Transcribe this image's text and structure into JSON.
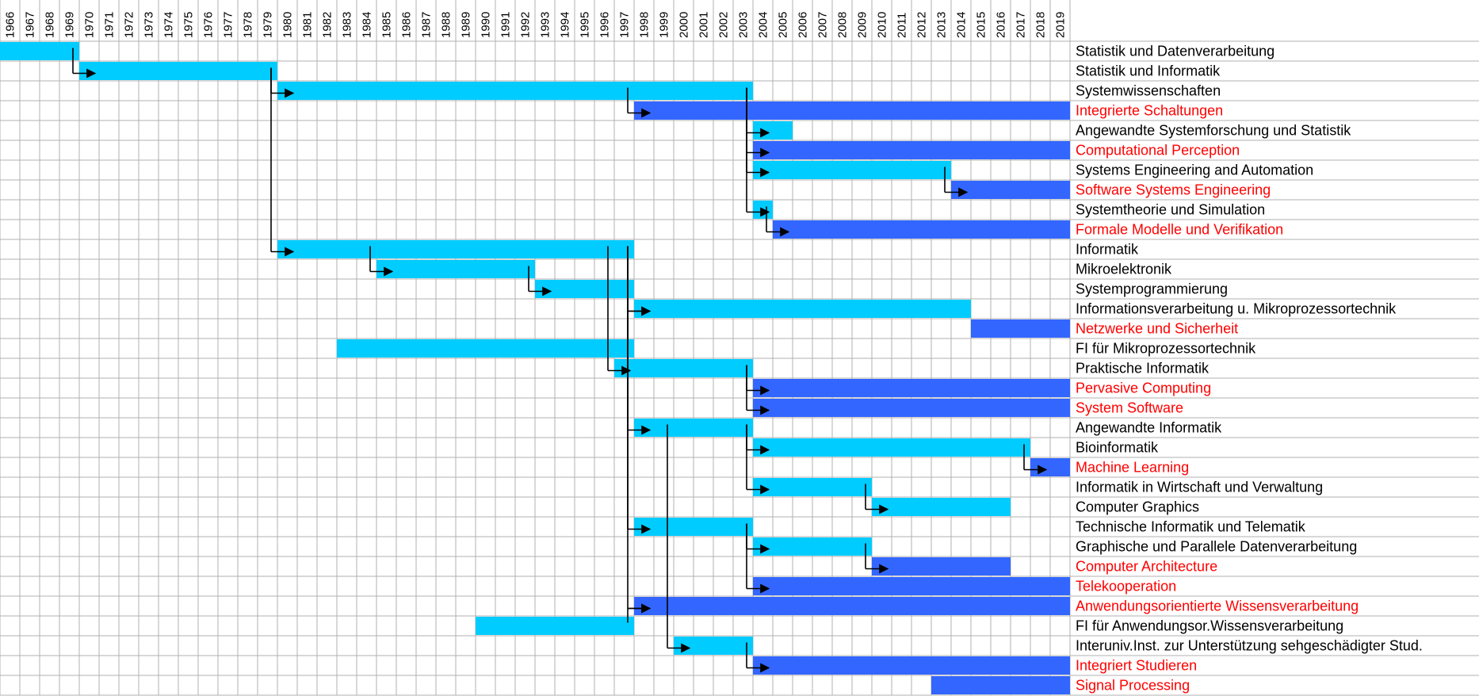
{
  "chart_data": {
    "type": "gantt-timeline",
    "x_start_year": 1966,
    "x_end_year": 2019,
    "years": [
      "1966",
      "1967",
      "1968",
      "1969",
      "1970",
      "1971",
      "1972",
      "1973",
      "1974",
      "1975",
      "1976",
      "1977",
      "1978",
      "1979",
      "1980",
      "1981",
      "1982",
      "1983",
      "1984",
      "1985",
      "1986",
      "1987",
      "1988",
      "1989",
      "1990",
      "1991",
      "1992",
      "1993",
      "1994",
      "1995",
      "1996",
      "1997",
      "1998",
      "1999",
      "2000",
      "2001",
      "2002",
      "2003",
      "2004",
      "2005",
      "2006",
      "2007",
      "2008",
      "2009",
      "2010",
      "2011",
      "2012",
      "2013",
      "2014",
      "2015",
      "2016",
      "2017",
      "2018",
      "2019"
    ],
    "grid": true,
    "colors": {
      "historic": "#00ccff",
      "current": "#3366ff",
      "current_label": "#ff0000",
      "historic_label": "#000000",
      "grid": "#b0b0b0",
      "arrow": "#000000"
    },
    "rows": [
      {
        "name": "Statistik und Datenverarbeitung",
        "start": 1966,
        "end": 1969,
        "current": false
      },
      {
        "name": "Statistik und Informatik",
        "start": 1970,
        "end": 1979,
        "current": false
      },
      {
        "name": "Systemwissenschaften",
        "start": 1980,
        "end": 2003,
        "current": false
      },
      {
        "name": "Integrierte Schaltungen",
        "start": 1998,
        "end": 2019,
        "current": true
      },
      {
        "name": "Angewandte Systemforschung und Statistik",
        "start": 2004,
        "end": 2005,
        "current": false
      },
      {
        "name": "Computational Perception",
        "start": 2004,
        "end": 2019,
        "current": true
      },
      {
        "name": "Systems Engineering and Automation",
        "start": 2004,
        "end": 2013,
        "current": false
      },
      {
        "name": "Software Systems Engineering",
        "start": 2014,
        "end": 2019,
        "current": true
      },
      {
        "name": "Systemtheorie und Simulation",
        "start": 2004,
        "end": 2004,
        "current": false
      },
      {
        "name": "Formale Modelle und Verifikation",
        "start": 2005,
        "end": 2019,
        "current": true
      },
      {
        "name": "Informatik",
        "start": 1980,
        "end": 1997,
        "current": false
      },
      {
        "name": "Mikroelektronik",
        "start": 1985,
        "end": 1992,
        "current": false
      },
      {
        "name": "Systemprogrammierung",
        "start": 1993,
        "end": 1997,
        "current": false
      },
      {
        "name": "Informationsverarbeitung u. Mikroprozessortechnik",
        "start": 1998,
        "end": 2014,
        "current": false
      },
      {
        "name": "Netzwerke und Sicherheit",
        "start": 2015,
        "end": 2019,
        "current": true
      },
      {
        "name": "FI für Mikroprozessortechnik",
        "start": 1983,
        "end": 1997,
        "current": false
      },
      {
        "name": "Praktische Informatik",
        "start": 1997,
        "end": 2003,
        "current": false
      },
      {
        "name": "Pervasive Computing",
        "start": 2004,
        "end": 2019,
        "current": true
      },
      {
        "name": "System Software",
        "start": 2004,
        "end": 2019,
        "current": true
      },
      {
        "name": "Angewandte Informatik",
        "start": 1998,
        "end": 2003,
        "current": false
      },
      {
        "name": "Bioinformatik",
        "start": 2004,
        "end": 2017,
        "current": false
      },
      {
        "name": "Machine Learning",
        "start": 2018,
        "end": 2019,
        "current": true
      },
      {
        "name": "Informatik in Wirtschaft und Verwaltung",
        "start": 2004,
        "end": 2009,
        "current": false
      },
      {
        "name": "Computer Graphics",
        "start": 2010,
        "end": 2016,
        "current": false
      },
      {
        "name": "Technische Informatik und Telematik",
        "start": 1998,
        "end": 2003,
        "current": false
      },
      {
        "name": "Graphische und Parallele Datenverarbeitung",
        "start": 2004,
        "end": 2009,
        "current": false
      },
      {
        "name": "Computer Architecture",
        "start": 2010,
        "end": 2016,
        "current": true
      },
      {
        "name": "Telekooperation",
        "start": 2004,
        "end": 2019,
        "current": true
      },
      {
        "name": "Anwendungsorientierte Wissensverarbeitung",
        "start": 1998,
        "end": 2019,
        "current": true
      },
      {
        "name": "FI für Anwendungsor.Wissensverarbeitung",
        "start": 1990,
        "end": 1997,
        "current": false
      },
      {
        "name": "Interuniv.Inst. zur Unterstützung sehgeschädigter Stud.",
        "start": 2000,
        "end": 2003,
        "current": false
      },
      {
        "name": "Integriert Studieren",
        "start": 2004,
        "end": 2019,
        "current": true
      },
      {
        "name": "Signal Processing",
        "start": 2013,
        "end": 2019,
        "current": true
      }
    ],
    "transitions": [
      {
        "from": 0,
        "to": 1,
        "year": 1969
      },
      {
        "from": 1,
        "to": 2,
        "year": 1979
      },
      {
        "from": 1,
        "to": 10,
        "year": 1979
      },
      {
        "from": 2,
        "to": 3,
        "year": 1997
      },
      {
        "from": 2,
        "to": 4,
        "year": 2003
      },
      {
        "from": 2,
        "to": 5,
        "year": 2003
      },
      {
        "from": 2,
        "to": 6,
        "year": 2003
      },
      {
        "from": 2,
        "to": 8,
        "year": 2003
      },
      {
        "from": 6,
        "to": 7,
        "year": 2013
      },
      {
        "from": 8,
        "to": 9,
        "year": 2004
      },
      {
        "from": 10,
        "to": 11,
        "year": 1984
      },
      {
        "from": 10,
        "to": 16,
        "year": 1996
      },
      {
        "from": 10,
        "to": 19,
        "year": 1997
      },
      {
        "from": 10,
        "to": 24,
        "year": 1997
      },
      {
        "from": 10,
        "to": 28,
        "year": 1997
      },
      {
        "from": 11,
        "to": 12,
        "year": 1992
      },
      {
        "from": 12,
        "to": 13,
        "year": 1997
      },
      {
        "from": 15,
        "to": 13,
        "year": 1997
      },
      {
        "from": 16,
        "to": 17,
        "year": 2003
      },
      {
        "from": 16,
        "to": 18,
        "year": 2003
      },
      {
        "from": 19,
        "to": 20,
        "year": 2003
      },
      {
        "from": 19,
        "to": 22,
        "year": 2003
      },
      {
        "from": 19,
        "to": 30,
        "year": 1999
      },
      {
        "from": 20,
        "to": 21,
        "year": 2017
      },
      {
        "from": 22,
        "to": 23,
        "year": 2009
      },
      {
        "from": 24,
        "to": 25,
        "year": 2003
      },
      {
        "from": 24,
        "to": 27,
        "year": 2003
      },
      {
        "from": 25,
        "to": 26,
        "year": 2009
      },
      {
        "from": 29,
        "to": 28,
        "year": 1997
      },
      {
        "from": 30,
        "to": 31,
        "year": 2003
      }
    ]
  }
}
